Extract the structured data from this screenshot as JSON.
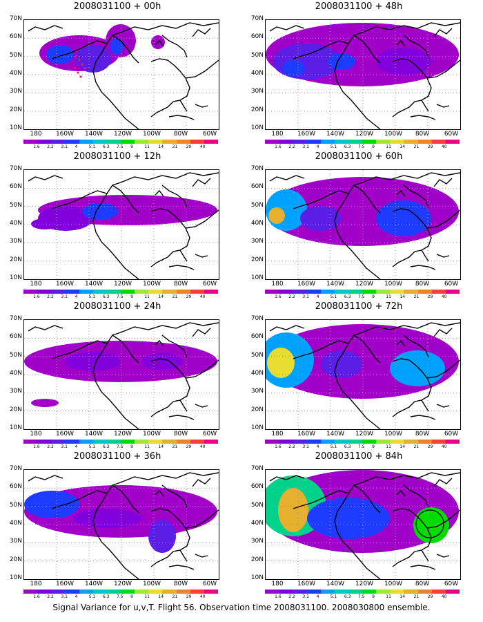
{
  "caption": "Signal Variance for u,v,T. Flight 56. Observation time 2008031100. 2008030800 ensemble.",
  "lat_labels": [
    "70N",
    "60N",
    "50N",
    "40N",
    "30N",
    "20N",
    "10N"
  ],
  "lon_labels": [
    "180",
    "160W",
    "140W",
    "120W",
    "100W",
    "80W",
    "60W"
  ],
  "colorbar": {
    "labels": [
      "1.6",
      "2.2",
      "3.1",
      "4",
      "5.1",
      "6.3",
      "7.5",
      "9",
      "11",
      "14",
      "21",
      "29",
      "40"
    ],
    "colors": [
      "#a000c8",
      "#8200dc",
      "#5a1ee6",
      "#1e3cff",
      "#00a0ff",
      "#00c8c8",
      "#00d28c",
      "#00dc00",
      "#a0e632",
      "#e6dc32",
      "#e6af2d",
      "#f08228",
      "#fa3c3c",
      "#f00082"
    ]
  },
  "panels": [
    {
      "title": "2008031100 + 00h",
      "lead_hours": 0
    },
    {
      "title": "2008031100 + 12h",
      "lead_hours": 12
    },
    {
      "title": "2008031100 + 24h",
      "lead_hours": 24
    },
    {
      "title": "2008031100 + 36h",
      "lead_hours": 36
    },
    {
      "title": "2008031100 + 48h",
      "lead_hours": 48
    },
    {
      "title": "2008031100 + 60h",
      "lead_hours": 60
    },
    {
      "title": "2008031100 + 72h",
      "lead_hours": 72
    },
    {
      "title": "2008031100 + 84h",
      "lead_hours": 84
    }
  ]
}
